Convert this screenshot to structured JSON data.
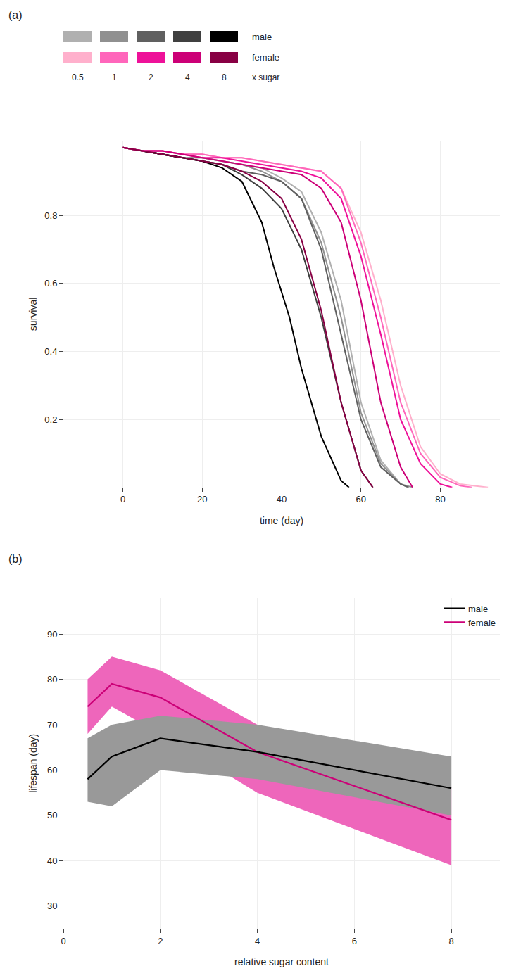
{
  "chart_data": [
    {
      "type": "line",
      "title": "(a)",
      "x_label": "time (day)",
      "y_label": "survival",
      "xlim": [
        -15,
        95
      ],
      "ylim": [
        0,
        1.02
      ],
      "xticks": [
        0,
        20,
        40,
        60,
        80
      ],
      "yticks": [
        0.2,
        0.4,
        0.6,
        0.8
      ],
      "legend_groups": [
        "male",
        "female"
      ],
      "legend_categories": [
        "0.5",
        "1",
        "2",
        "4",
        "8"
      ],
      "legend_suffix": "x sugar",
      "series": [
        {
          "group": "male",
          "category": "0.5",
          "color": "#b0b0b0",
          "x": [
            0,
            5,
            10,
            15,
            20,
            25,
            30,
            35,
            40,
            45,
            50,
            55,
            60,
            65,
            70,
            72
          ],
          "values": [
            1.0,
            0.99,
            0.98,
            0.97,
            0.97,
            0.96,
            0.95,
            0.94,
            0.91,
            0.87,
            0.75,
            0.55,
            0.25,
            0.08,
            0.01,
            0.0
          ]
        },
        {
          "group": "male",
          "category": "1",
          "color": "#909090",
          "x": [
            0,
            5,
            10,
            15,
            20,
            25,
            30,
            35,
            40,
            45,
            50,
            55,
            60,
            65,
            70,
            73
          ],
          "values": [
            1.0,
            0.99,
            0.98,
            0.97,
            0.97,
            0.96,
            0.95,
            0.93,
            0.9,
            0.85,
            0.72,
            0.5,
            0.22,
            0.07,
            0.01,
            0.0
          ]
        },
        {
          "group": "male",
          "category": "2",
          "color": "#606060",
          "x": [
            0,
            5,
            10,
            15,
            20,
            25,
            30,
            35,
            40,
            45,
            50,
            55,
            60,
            65,
            70,
            72
          ],
          "values": [
            1.0,
            0.99,
            0.98,
            0.97,
            0.96,
            0.95,
            0.93,
            0.92,
            0.9,
            0.85,
            0.7,
            0.45,
            0.2,
            0.06,
            0.01,
            0.0
          ]
        },
        {
          "group": "male",
          "category": "4",
          "color": "#404040",
          "x": [
            0,
            5,
            10,
            15,
            20,
            25,
            30,
            35,
            40,
            45,
            50,
            55,
            60,
            63
          ],
          "values": [
            1.0,
            0.99,
            0.98,
            0.97,
            0.96,
            0.95,
            0.92,
            0.88,
            0.82,
            0.7,
            0.5,
            0.25,
            0.05,
            0.0
          ]
        },
        {
          "group": "male",
          "category": "8",
          "color": "#000000",
          "x": [
            0,
            5,
            10,
            15,
            20,
            25,
            30,
            35,
            38,
            42,
            45,
            50,
            55,
            57
          ],
          "values": [
            1.0,
            0.99,
            0.98,
            0.97,
            0.96,
            0.94,
            0.9,
            0.78,
            0.65,
            0.5,
            0.35,
            0.15,
            0.02,
            0.0
          ]
        },
        {
          "group": "female",
          "category": "0.5",
          "color": "#ffb0cc",
          "x": [
            0,
            5,
            10,
            15,
            20,
            25,
            30,
            35,
            40,
            45,
            50,
            55,
            60,
            65,
            70,
            75,
            80,
            85,
            90,
            92
          ],
          "values": [
            1.0,
            0.99,
            0.99,
            0.98,
            0.98,
            0.97,
            0.97,
            0.96,
            0.95,
            0.94,
            0.93,
            0.88,
            0.75,
            0.55,
            0.3,
            0.12,
            0.04,
            0.01,
            0.002,
            0.0
          ]
        },
        {
          "group": "female",
          "category": "1",
          "color": "#ff66bb",
          "x": [
            0,
            5,
            10,
            15,
            20,
            25,
            30,
            35,
            40,
            45,
            50,
            55,
            60,
            65,
            70,
            75,
            80,
            85,
            88
          ],
          "values": [
            1.0,
            0.99,
            0.99,
            0.98,
            0.98,
            0.97,
            0.97,
            0.96,
            0.95,
            0.94,
            0.93,
            0.88,
            0.72,
            0.5,
            0.25,
            0.1,
            0.03,
            0.005,
            0.0
          ]
        },
        {
          "group": "female",
          "category": "2",
          "color": "#ee1199",
          "x": [
            0,
            5,
            10,
            15,
            20,
            25,
            30,
            35,
            40,
            45,
            50,
            55,
            60,
            65,
            70,
            75,
            80,
            83
          ],
          "values": [
            1.0,
            0.99,
            0.99,
            0.98,
            0.97,
            0.97,
            0.96,
            0.95,
            0.94,
            0.93,
            0.91,
            0.85,
            0.68,
            0.45,
            0.2,
            0.07,
            0.01,
            0.0
          ]
        },
        {
          "group": "female",
          "category": "4",
          "color": "#cc0077",
          "x": [
            0,
            5,
            10,
            15,
            20,
            25,
            30,
            35,
            40,
            45,
            50,
            55,
            60,
            65,
            70,
            73
          ],
          "values": [
            1.0,
            0.99,
            0.99,
            0.98,
            0.97,
            0.96,
            0.95,
            0.94,
            0.93,
            0.92,
            0.88,
            0.78,
            0.55,
            0.25,
            0.06,
            0.0
          ]
        },
        {
          "group": "female",
          "category": "8",
          "color": "#880044",
          "x": [
            0,
            5,
            10,
            15,
            20,
            25,
            30,
            35,
            40,
            45,
            50,
            55,
            60,
            63
          ],
          "values": [
            1.0,
            0.99,
            0.98,
            0.97,
            0.96,
            0.95,
            0.93,
            0.9,
            0.85,
            0.73,
            0.52,
            0.25,
            0.05,
            0.0
          ]
        }
      ]
    },
    {
      "type": "band",
      "title": "(b)",
      "x_label": "relative sugar content",
      "y_label": "lifespan (day)",
      "x": [
        0.5,
        1,
        2,
        4,
        8
      ],
      "xlim": [
        0,
        9
      ],
      "ylim": [
        25,
        98
      ],
      "xticks": [
        0,
        2,
        4,
        6,
        8
      ],
      "yticks": [
        30,
        40,
        50,
        60,
        70,
        80,
        90
      ],
      "legend": "upper right",
      "series": [
        {
          "name": "female",
          "color": "#cc0077",
          "fill_color": "#ee66bb",
          "values": [
            74,
            79,
            76,
            64,
            49
          ],
          "q1": [
            68,
            74,
            68,
            55,
            39
          ],
          "q3": [
            80,
            85,
            82,
            70,
            56
          ]
        },
        {
          "name": "male",
          "color": "#000000",
          "fill_color": "#999999",
          "values": [
            58,
            63,
            67,
            64,
            56
          ],
          "q1": [
            53,
            52,
            60,
            58,
            50
          ],
          "q3": [
            67,
            70,
            72,
            70,
            63
          ]
        }
      ]
    }
  ]
}
